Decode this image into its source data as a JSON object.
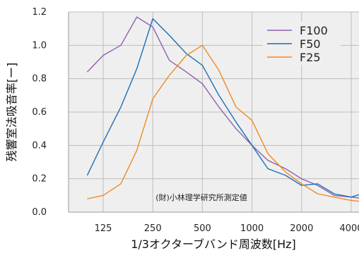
{
  "chart_data": {
    "type": "line",
    "xlabel": "1/3オクターブバンド周波数[Hz]",
    "ylabel": "残響室法吸音率[ー]",
    "x": [
      100,
      125,
      160,
      200,
      250,
      315,
      400,
      500,
      630,
      800,
      1000,
      1250,
      1600,
      2000,
      2500,
      3150,
      4000,
      5000
    ],
    "x_scale": "log",
    "xlim": [
      100,
      5000
    ],
    "ylim": [
      0,
      1.2
    ],
    "x_ticks": [
      {
        "value": 125,
        "label": "125"
      },
      {
        "value": 250,
        "label": "250"
      },
      {
        "value": 500,
        "label": "500"
      },
      {
        "value": 1000,
        "label": "1000"
      },
      {
        "value": 2000,
        "label": "2000"
      },
      {
        "value": 4000,
        "label": "4000"
      }
    ],
    "y_ticks": [
      {
        "value": 0.0,
        "label": "0.0"
      },
      {
        "value": 0.2,
        "label": "0.2"
      },
      {
        "value": 0.4,
        "label": "0.4"
      },
      {
        "value": 0.6,
        "label": "0.6"
      },
      {
        "value": 0.8,
        "label": "0.8"
      },
      {
        "value": 1.0,
        "label": "1.0"
      },
      {
        "value": 1.2,
        "label": "1.2"
      }
    ],
    "grid": true,
    "legend_position": "top-right",
    "annotation": "(財)小林理学研究所測定値",
    "series": [
      {
        "name": "F100",
        "color": "#9060b0",
        "values": [
          0.84,
          0.94,
          1.0,
          1.17,
          1.11,
          0.91,
          0.84,
          0.77,
          0.63,
          0.5,
          0.4,
          0.31,
          0.26,
          0.2,
          0.16,
          0.1,
          0.09,
          0.08
        ]
      },
      {
        "name": "F50",
        "color": "#1e6fb5",
        "values": [
          0.22,
          0.42,
          0.63,
          0.86,
          1.16,
          1.06,
          0.95,
          0.88,
          0.7,
          0.54,
          0.4,
          0.26,
          0.22,
          0.16,
          0.17,
          0.11,
          0.09,
          0.12
        ]
      },
      {
        "name": "F25",
        "color": "#f08a24",
        "values": [
          0.08,
          0.1,
          0.17,
          0.37,
          0.68,
          0.82,
          0.94,
          1.0,
          0.85,
          0.63,
          0.55,
          0.35,
          0.24,
          0.17,
          0.11,
          0.09,
          0.07,
          0.06
        ]
      }
    ]
  }
}
